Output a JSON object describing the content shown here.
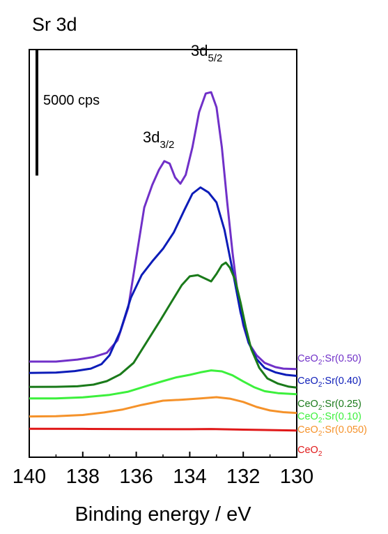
{
  "chart_data": {
    "type": "line",
    "title": "Sr 3d",
    "xlabel": "Binding energy / eV",
    "ylabel": "",
    "xlim": [
      140,
      130
    ],
    "x_reversed": true,
    "x_ticks": [
      140,
      138,
      136,
      134,
      132,
      130
    ],
    "y_ticks_shown": false,
    "grid": false,
    "scale_bar": {
      "label": "5000 cps",
      "value": 5000,
      "unit": "cps"
    },
    "peak_labels": [
      {
        "main": "3d",
        "sub": "5/2",
        "x": 133.2
      },
      {
        "main": "3d",
        "sub": "3/2",
        "x": 134.9
      }
    ],
    "legend_placement": "right, beside each curve",
    "series": [
      {
        "name": "CeO2:Sr(0.50)",
        "label_main": "CeO",
        "label_sub": "2",
        "label_rest": ":Sr(0.50)",
        "color": "#7030c8",
        "points": [
          [
            140.0,
            1150
          ],
          [
            139.0,
            1150
          ],
          [
            138.2,
            1230
          ],
          [
            137.6,
            1330
          ],
          [
            137.1,
            1500
          ],
          [
            136.7,
            2000
          ],
          [
            136.3,
            3300
          ],
          [
            136.0,
            5300
          ],
          [
            135.7,
            7300
          ],
          [
            135.4,
            8200
          ],
          [
            135.15,
            8800
          ],
          [
            134.95,
            9150
          ],
          [
            134.75,
            9050
          ],
          [
            134.55,
            8500
          ],
          [
            134.35,
            8250
          ],
          [
            134.15,
            8600
          ],
          [
            133.9,
            9700
          ],
          [
            133.65,
            11100
          ],
          [
            133.4,
            11850
          ],
          [
            133.2,
            11900
          ],
          [
            133.0,
            11300
          ],
          [
            132.8,
            9700
          ],
          [
            132.6,
            7500
          ],
          [
            132.4,
            5500
          ],
          [
            132.2,
            3800
          ],
          [
            132.0,
            2600
          ],
          [
            131.8,
            1900
          ],
          [
            131.5,
            1400
          ],
          [
            131.2,
            1100
          ],
          [
            130.8,
            930
          ],
          [
            130.5,
            870
          ],
          [
            130.0,
            850
          ]
        ]
      },
      {
        "name": "CeO2:Sr(0.40)",
        "label_main": "CeO",
        "label_sub": "2",
        "label_rest": ":Sr(0.40)",
        "color": "#0c1cb8",
        "points": [
          [
            140.0,
            700
          ],
          [
            139.0,
            710
          ],
          [
            138.3,
            770
          ],
          [
            137.7,
            870
          ],
          [
            137.3,
            1050
          ],
          [
            137.0,
            1400
          ],
          [
            136.6,
            2350
          ],
          [
            136.2,
            3700
          ],
          [
            135.8,
            4600
          ],
          [
            135.4,
            5150
          ],
          [
            135.0,
            5650
          ],
          [
            134.6,
            6300
          ],
          [
            134.2,
            7200
          ],
          [
            133.9,
            7850
          ],
          [
            133.6,
            8100
          ],
          [
            133.3,
            7900
          ],
          [
            133.0,
            7500
          ],
          [
            132.7,
            6400
          ],
          [
            132.4,
            4800
          ],
          [
            132.1,
            3100
          ],
          [
            131.8,
            1900
          ],
          [
            131.5,
            1250
          ],
          [
            131.2,
            900
          ],
          [
            130.8,
            720
          ],
          [
            130.4,
            620
          ],
          [
            130.0,
            580
          ]
        ]
      },
      {
        "name": "CeO2:Sr(0.25)",
        "label_main": "CeO",
        "label_sub": "2",
        "label_rest": ":Sr(0.25)",
        "color": "#1a7a1a",
        "points": [
          [
            140.0,
            140
          ],
          [
            139.0,
            145
          ],
          [
            138.2,
            165
          ],
          [
            137.6,
            230
          ],
          [
            137.1,
            370
          ],
          [
            136.6,
            640
          ],
          [
            136.1,
            1100
          ],
          [
            135.6,
            1950
          ],
          [
            135.1,
            2800
          ],
          [
            134.7,
            3500
          ],
          [
            134.3,
            4200
          ],
          [
            134.0,
            4550
          ],
          [
            133.7,
            4600
          ],
          [
            133.4,
            4450
          ],
          [
            133.2,
            4350
          ],
          [
            133.0,
            4650
          ],
          [
            132.8,
            5000
          ],
          [
            132.65,
            5100
          ],
          [
            132.5,
            4900
          ],
          [
            132.3,
            4400
          ],
          [
            132.1,
            3500
          ],
          [
            131.9,
            2500
          ],
          [
            131.7,
            1650
          ],
          [
            131.4,
            900
          ],
          [
            131.1,
            480
          ],
          [
            130.7,
            270
          ],
          [
            130.3,
            150
          ],
          [
            130.0,
            110
          ]
        ]
      },
      {
        "name": "CeO2:Sr(0.10)",
        "label_main": "CeO",
        "label_sub": "2",
        "label_rest": ":Sr(0.10)",
        "color": "#3cf03c",
        "points": [
          [
            140.0,
            -320
          ],
          [
            139.0,
            -320
          ],
          [
            138.0,
            -280
          ],
          [
            137.0,
            -180
          ],
          [
            136.3,
            -50
          ],
          [
            135.6,
            180
          ],
          [
            135.0,
            370
          ],
          [
            134.5,
            520
          ],
          [
            134.0,
            620
          ],
          [
            133.6,
            720
          ],
          [
            133.2,
            800
          ],
          [
            132.8,
            760
          ],
          [
            132.4,
            600
          ],
          [
            132.0,
            360
          ],
          [
            131.6,
            130
          ],
          [
            131.2,
            -30
          ],
          [
            130.7,
            -110
          ],
          [
            130.0,
            -150
          ]
        ]
      },
      {
        "name": "CeO2:Sr(0.050)",
        "label_main": "CeO",
        "label_sub": "2",
        "label_rest": ":Sr(0.050)",
        "color": "#f5922a",
        "points": [
          [
            140.0,
            -1040
          ],
          [
            139.0,
            -1030
          ],
          [
            138.0,
            -980
          ],
          [
            137.2,
            -880
          ],
          [
            136.5,
            -760
          ],
          [
            135.8,
            -580
          ],
          [
            135.0,
            -410
          ],
          [
            134.3,
            -370
          ],
          [
            133.6,
            -320
          ],
          [
            133.0,
            -270
          ],
          [
            132.5,
            -330
          ],
          [
            132.0,
            -460
          ],
          [
            131.5,
            -660
          ],
          [
            131.0,
            -800
          ],
          [
            130.5,
            -870
          ],
          [
            130.0,
            -900
          ]
        ]
      },
      {
        "name": "CeO2",
        "label_main": "CeO",
        "label_sub": "2",
        "label_rest": "",
        "color": "#e01818",
        "points": [
          [
            140.0,
            -1530
          ],
          [
            138.0,
            -1535
          ],
          [
            136.0,
            -1545
          ],
          [
            134.0,
            -1550
          ],
          [
            133.2,
            -1540
          ],
          [
            132.0,
            -1565
          ],
          [
            130.0,
            -1600
          ]
        ]
      }
    ]
  }
}
